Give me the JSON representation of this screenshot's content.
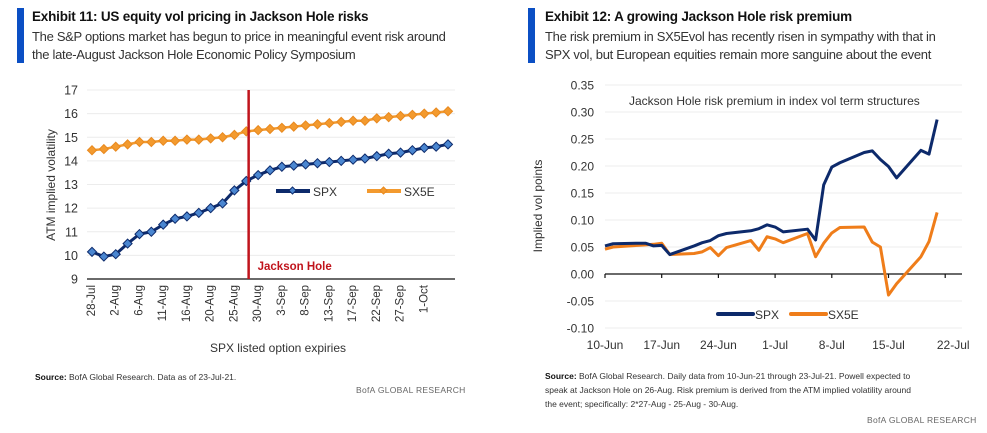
{
  "brand": "BofA GLOBAL RESEARCH",
  "exhibits": [
    {
      "title": "Exhibit 11: US equity vol pricing in Jackson Hole risks",
      "subtitle_lines": [
        "The S&P options market has begun to price in meaningful event risk around",
        "the late-August Jackson Hole Economic Policy Symposium"
      ],
      "source_label": "Source:",
      "source_text": " BofA Global Research.  Data as of 23-Jul-21."
    },
    {
      "title": "Exhibit 12: A growing Jackson Hole risk premium",
      "subtitle_lines": [
        "The risk premium in SX5Evol has recently risen in sympathy with that in",
        "SPX vol, but European equities remain more sanguine about the event"
      ],
      "source_label": "Source:",
      "source_lines": [
        " BofA Global Research.  Daily data from 10-Jun-21 through 23-Jul-21.  Powell expected to",
        "speak at Jackson Hole on 26-Aug.  Risk premium is derived from the ATM implied volatility around",
        "the event; specifically: 2*27-Aug  - 25-Aug - 30-Aug."
      ]
    }
  ],
  "colors": {
    "spx": "#0d2a6b",
    "spx_marker": "#4a86d0",
    "sx5e_left": "#f39a2e",
    "sx5e_right": "#ef7d1a",
    "event_line": "#c0141c",
    "accent_bar": "#0b4fc4"
  },
  "chart_data": [
    {
      "type": "line",
      "title": "",
      "xlabel": "SPX listed option expiries",
      "ylabel": "ATM implied volatility",
      "ylim": [
        9,
        17
      ],
      "yticks": [
        9,
        10,
        11,
        12,
        13,
        14,
        15,
        16,
        17
      ],
      "grid": true,
      "x_tick_labels": [
        "28-Jul",
        "2-Aug",
        "6-Aug",
        "11-Aug",
        "16-Aug",
        "20-Aug",
        "25-Aug",
        "30-Aug",
        "3-Sep",
        "8-Sep",
        "13-Sep",
        "17-Sep",
        "22-Sep",
        "27-Sep",
        "1-Oct"
      ],
      "annotation": {
        "label": "Jackson Hole",
        "x_index": 13.2
      },
      "legend": {
        "placement": "center-right",
        "entries": [
          "SPX",
          "SX5E"
        ]
      },
      "series": [
        {
          "name": "SPX",
          "values": [
            10.15,
            9.95,
            10.05,
            10.5,
            10.9,
            11.0,
            11.3,
            11.55,
            11.65,
            11.8,
            12.0,
            12.2,
            12.75,
            13.15,
            13.4,
            13.6,
            13.75,
            13.8,
            13.85,
            13.9,
            13.95,
            14.0,
            14.05,
            14.1,
            14.2,
            14.3,
            14.35,
            14.45,
            14.55,
            14.6,
            14.7
          ]
        },
        {
          "name": "SX5E",
          "values": [
            14.45,
            14.5,
            14.6,
            14.7,
            14.8,
            14.8,
            14.85,
            14.85,
            14.9,
            14.9,
            14.95,
            15.0,
            15.1,
            15.25,
            15.3,
            15.35,
            15.4,
            15.45,
            15.5,
            15.55,
            15.6,
            15.65,
            15.7,
            15.7,
            15.8,
            15.85,
            15.9,
            15.95,
            16.0,
            16.05,
            16.1
          ]
        }
      ]
    },
    {
      "type": "line",
      "title": "Jackson Hole risk premium in index vol term structures",
      "xlabel": "",
      "ylabel": "Implied vol points",
      "ylim": [
        -0.1,
        0.35
      ],
      "yticks": [
        "0.35",
        "0.30",
        "0.25",
        "0.20",
        "0.15",
        "0.10",
        "0.05",
        "0.00",
        "-0.05",
        "-0.10"
      ],
      "grid": true,
      "x_tick_labels": [
        "10-Jun",
        "17-Jun",
        "24-Jun",
        "1-Jul",
        "8-Jul",
        "15-Jul",
        "22-Jul"
      ],
      "legend": {
        "placement": "bottom-center",
        "entries": [
          "SPX",
          "SX5E"
        ]
      },
      "x_days": [
        0,
        1,
        4,
        5,
        6,
        7,
        8,
        11,
        12,
        13,
        14,
        15,
        18,
        19,
        20,
        21,
        22,
        25,
        26,
        27,
        28,
        29,
        32,
        33,
        34,
        35,
        36,
        39,
        40,
        41,
        42,
        43
      ],
      "series": [
        {
          "name": "SPX",
          "values": [
            0.052,
            0.056,
            0.057,
            0.057,
            0.052,
            0.053,
            0.036,
            0.052,
            0.058,
            0.062,
            0.071,
            0.075,
            0.08,
            0.084,
            0.091,
            0.087,
            0.078,
            0.083,
            0.063,
            0.165,
            0.198,
            0.206,
            0.225,
            0.228,
            0.212,
            0.199,
            0.178,
            0.229,
            0.222,
            0.286,
            0.286,
            0.286
          ]
        },
        {
          "name": "SX5E",
          "values": [
            0.046,
            0.05,
            0.053,
            0.054,
            0.055,
            0.057,
            0.036,
            0.038,
            0.041,
            0.049,
            0.034,
            0.049,
            0.062,
            0.044,
            0.069,
            0.065,
            0.058,
            0.075,
            0.032,
            0.057,
            0.076,
            0.086,
            0.087,
            0.059,
            0.05,
            -0.039,
            -0.018,
            0.032,
            0.06,
            0.114,
            0.114,
            0.114
          ]
        }
      ]
    }
  ]
}
